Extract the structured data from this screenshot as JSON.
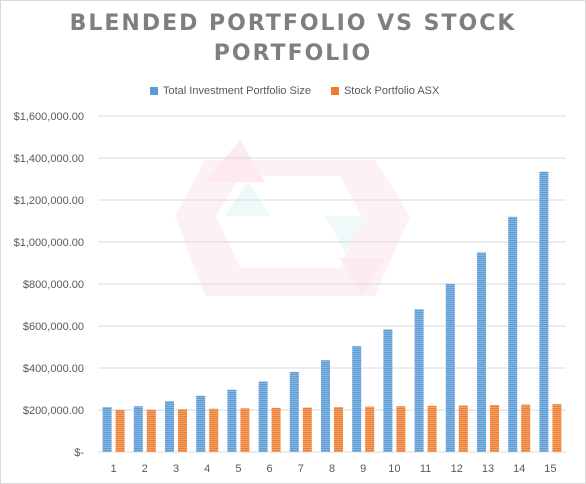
{
  "chart_data": {
    "type": "bar",
    "title_lines": [
      "BLENDED PORTFOLIO VS STOCK",
      "PORTFOLIO"
    ],
    "categories": [
      "1",
      "2",
      "3",
      "4",
      "5",
      "6",
      "7",
      "8",
      "9",
      "10",
      "11",
      "12",
      "13",
      "14",
      "15"
    ],
    "series": [
      {
        "name": "Total Investment Portfolio Size",
        "color": "#5b9bd5",
        "values": [
          214000,
          218000,
          242000,
          268000,
          297000,
          336000,
          381000,
          437000,
          504000,
          584000,
          680000,
          800000,
          950000,
          1120000,
          1335000
        ]
      },
      {
        "name": "Stock Portfolio ASX",
        "color": "#ed7d31",
        "values": [
          200000,
          202000,
          204000,
          206000,
          208000,
          210000,
          212000,
          214000,
          216000,
          218000,
          220000,
          222000,
          224000,
          226000,
          228000
        ]
      }
    ],
    "ylim": [
      0,
      1600000
    ],
    "yticks": [
      0,
      200000,
      400000,
      600000,
      800000,
      1000000,
      1200000,
      1400000,
      1600000
    ],
    "ytick_labels": [
      "$-",
      "$200,000.00",
      "$400,000.00",
      "$600,000.00",
      "$800,000.00",
      "$1,000,000.00",
      "$1,200,000.00",
      "$1,400,000.00",
      "$1,600,000.00"
    ],
    "xlabel": "",
    "ylabel": "",
    "grid": true,
    "legend": "top-center"
  }
}
